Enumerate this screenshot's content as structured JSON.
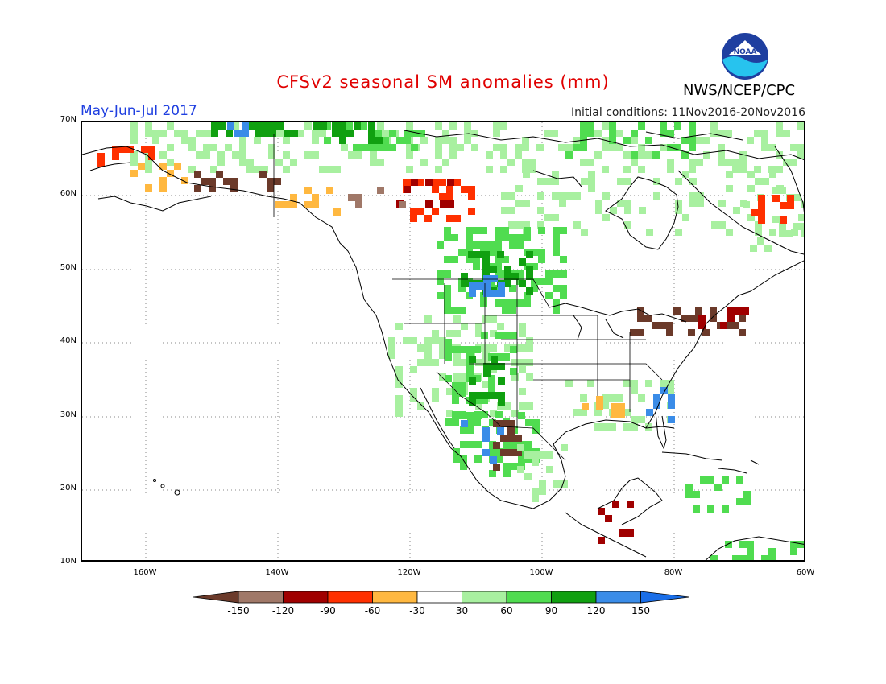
{
  "header": {
    "title": "CFSv2 seasonal SM anomalies (mm)",
    "period": "May-Jun-Jul 2017",
    "initial_conditions": "Initial conditions: 11Nov2016-20Nov2016",
    "agency": "NWS/NCEP/CPC",
    "logo_text": "NOAA"
  },
  "axes": {
    "lat_labels": [
      "70N",
      "60N",
      "50N",
      "40N",
      "30N",
      "20N",
      "10N"
    ],
    "lon_labels": [
      "160W",
      "140W",
      "120W",
      "100W",
      "80W",
      "60W"
    ]
  },
  "colorbar": {
    "labels": [
      "-150",
      "-120",
      "-90",
      "-60",
      "-30",
      "30",
      "60",
      "90",
      "120",
      "150"
    ],
    "colors": [
      "#6b3a2a",
      "#a07868",
      "#a00000",
      "#ff3000",
      "#ffb840",
      "#ffffff",
      "#a8f0a0",
      "#50dc50",
      "#10a010",
      "#3a8ce8",
      "#1a6ee8"
    ]
  },
  "map": {
    "region": "North America",
    "colors": {
      "dry_strong": "#6b3a2a",
      "dry_brown": "#a07868",
      "dry_red": "#a00000",
      "dry_orange": "#ff3000",
      "dry_gold": "#ffb840",
      "wet_light": "#a8f0a0",
      "wet_mid": "#50dc50",
      "wet_dark": "#10a010",
      "wet_blue": "#3a8ce8"
    }
  }
}
